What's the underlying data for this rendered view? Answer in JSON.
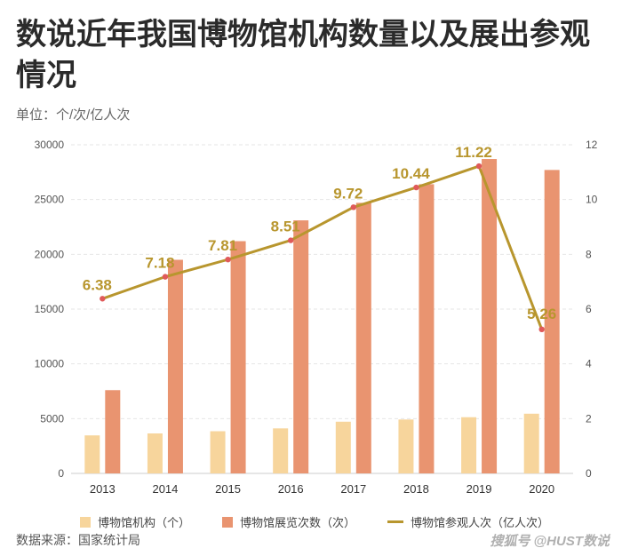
{
  "title": "数说近年我国博物馆机构数量以及展出参观情况",
  "unit_label": "单位：个/次/亿人次",
  "source": "数据来源：国家统计局",
  "watermark": "搜狐号 @HUST数说",
  "colors": {
    "museums": "#f7d59c",
    "exhibitions": "#e99470",
    "visits_line": "#b8962e",
    "visits_point": "#e05a5a",
    "visits_label": "#b8962e",
    "grid": "#e6e6e6",
    "axis_text": "#555555"
  },
  "chart_data": {
    "type": "bar",
    "categories": [
      "2013",
      "2014",
      "2015",
      "2016",
      "2017",
      "2018",
      "2019",
      "2020"
    ],
    "series": [
      {
        "name": "博物馆机构（个）",
        "type": "bar",
        "axis": "left",
        "values": [
          3470,
          3650,
          3850,
          4110,
          4720,
          4920,
          5130,
          5450
        ]
      },
      {
        "name": "博物馆展览次数（次）",
        "type": "bar",
        "axis": "left",
        "values": [
          7600,
          19500,
          21200,
          23100,
          24700,
          26400,
          28700,
          27700
        ]
      },
      {
        "name": "博物馆参观人次（亿人次）",
        "type": "line",
        "axis": "right",
        "values": [
          6.38,
          7.18,
          7.81,
          8.51,
          9.72,
          10.44,
          11.22,
          5.26
        ],
        "labels": [
          "6.38",
          "7.18",
          "7.81",
          "8.51",
          "9.72",
          "10.44",
          "11.22",
          "5.26"
        ]
      }
    ],
    "y_left": {
      "ylim": [
        0,
        30000
      ],
      "ticks": [
        "0",
        "5000",
        "10000",
        "15000",
        "20000",
        "25000",
        "30000"
      ]
    },
    "y_right": {
      "ylim": [
        0,
        12
      ],
      "ticks": [
        "0",
        "2",
        "4",
        "6",
        "8",
        "10",
        "12"
      ]
    },
    "grid": true,
    "legend": "bottom"
  }
}
